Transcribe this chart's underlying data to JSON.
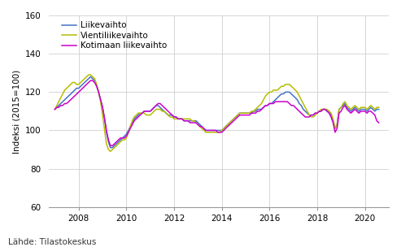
{
  "title": "",
  "ylabel": "Indeksi (2015=100)",
  "source_text": "Lähde: Tilastokeskus",
  "ylim": [
    60,
    160
  ],
  "yticks": [
    60,
    80,
    100,
    120,
    140,
    160
  ],
  "xticks": [
    2008,
    2010,
    2012,
    2014,
    2016,
    2018,
    2020
  ],
  "legend_labels": [
    "Liikevaihto",
    "Vientiliikevaihto",
    "Kotimaan liikevaihto"
  ],
  "colors": [
    "#4472c4",
    "#b5bd00",
    "#cc00cc"
  ],
  "line_width": 1.1,
  "liikevaihto": [
    111,
    112,
    113,
    114,
    115,
    116,
    117,
    118,
    119,
    120,
    121,
    122,
    122,
    123,
    124,
    125,
    126,
    127,
    128,
    127,
    126,
    124,
    120,
    116,
    112,
    106,
    99,
    94,
    91,
    91,
    92,
    93,
    94,
    95,
    96,
    97,
    98,
    100,
    102,
    104,
    106,
    107,
    108,
    109,
    109,
    110,
    110,
    110,
    110,
    111,
    112,
    113,
    113,
    112,
    111,
    110,
    109,
    108,
    108,
    108,
    107,
    107,
    106,
    106,
    106,
    105,
    105,
    105,
    105,
    105,
    105,
    105,
    104,
    103,
    102,
    101,
    100,
    100,
    100,
    100,
    100,
    100,
    100,
    100,
    100,
    101,
    102,
    103,
    104,
    105,
    106,
    107,
    108,
    109,
    109,
    109,
    109,
    109,
    109,
    109,
    110,
    110,
    111,
    111,
    111,
    112,
    113,
    113,
    114,
    114,
    115,
    116,
    117,
    118,
    119,
    119,
    120,
    120,
    120,
    119,
    118,
    117,
    116,
    114,
    113,
    111,
    110,
    109,
    108,
    108,
    108,
    109,
    109,
    110,
    110,
    111,
    111,
    110,
    110,
    108,
    105,
    101,
    103,
    111,
    112,
    113,
    114,
    112,
    111,
    110,
    111,
    112,
    111,
    110,
    111,
    111,
    111,
    110,
    111,
    112,
    111,
    110,
    111,
    111
  ],
  "vientiliikevaihto": [
    111,
    113,
    115,
    117,
    119,
    121,
    122,
    123,
    124,
    125,
    125,
    124,
    124,
    125,
    126,
    127,
    128,
    129,
    129,
    128,
    127,
    124,
    120,
    115,
    108,
    100,
    93,
    90,
    89,
    90,
    91,
    92,
    93,
    94,
    95,
    95,
    96,
    99,
    102,
    105,
    107,
    108,
    109,
    109,
    109,
    109,
    108,
    108,
    108,
    109,
    110,
    111,
    111,
    111,
    110,
    110,
    109,
    108,
    107,
    107,
    106,
    106,
    106,
    106,
    106,
    106,
    106,
    106,
    106,
    105,
    105,
    104,
    103,
    102,
    101,
    100,
    99,
    99,
    99,
    99,
    99,
    99,
    99,
    99,
    100,
    101,
    102,
    103,
    104,
    105,
    106,
    107,
    108,
    109,
    109,
    109,
    109,
    109,
    109,
    110,
    110,
    111,
    112,
    113,
    114,
    116,
    118,
    119,
    120,
    120,
    121,
    121,
    121,
    122,
    123,
    123,
    124,
    124,
    124,
    123,
    122,
    121,
    120,
    118,
    116,
    114,
    112,
    110,
    108,
    107,
    107,
    108,
    109,
    110,
    111,
    111,
    111,
    111,
    110,
    109,
    106,
    101,
    103,
    111,
    112,
    114,
    115,
    113,
    112,
    111,
    112,
    113,
    112,
    111,
    112,
    112,
    112,
    111,
    112,
    113,
    112,
    111,
    112,
    112
  ],
  "kotimaan_liikevaihto": [
    111,
    112,
    112,
    113,
    113,
    114,
    114,
    115,
    116,
    117,
    118,
    119,
    120,
    121,
    122,
    123,
    124,
    125,
    126,
    126,
    125,
    123,
    120,
    116,
    112,
    106,
    100,
    95,
    92,
    92,
    93,
    94,
    95,
    96,
    96,
    96,
    97,
    99,
    101,
    103,
    105,
    106,
    107,
    108,
    109,
    110,
    110,
    110,
    110,
    111,
    112,
    113,
    114,
    114,
    113,
    112,
    111,
    110,
    109,
    108,
    107,
    107,
    106,
    106,
    106,
    105,
    105,
    105,
    104,
    104,
    104,
    104,
    103,
    102,
    102,
    101,
    100,
    100,
    100,
    100,
    100,
    100,
    99,
    99,
    99,
    100,
    101,
    102,
    103,
    104,
    105,
    106,
    107,
    108,
    108,
    108,
    108,
    108,
    108,
    109,
    109,
    109,
    110,
    110,
    111,
    112,
    113,
    113,
    114,
    114,
    114,
    115,
    115,
    115,
    115,
    115,
    115,
    115,
    114,
    113,
    113,
    112,
    111,
    110,
    109,
    108,
    107,
    107,
    107,
    108,
    108,
    109,
    109,
    110,
    110,
    111,
    111,
    110,
    109,
    107,
    104,
    99,
    101,
    109,
    110,
    112,
    113,
    111,
    110,
    109,
    110,
    111,
    110,
    109,
    110,
    110,
    110,
    109,
    110,
    110,
    109,
    108,
    105,
    104
  ],
  "bg_color": "#ffffff",
  "grid_color": "#d0d0d0",
  "font_size": 7.5
}
